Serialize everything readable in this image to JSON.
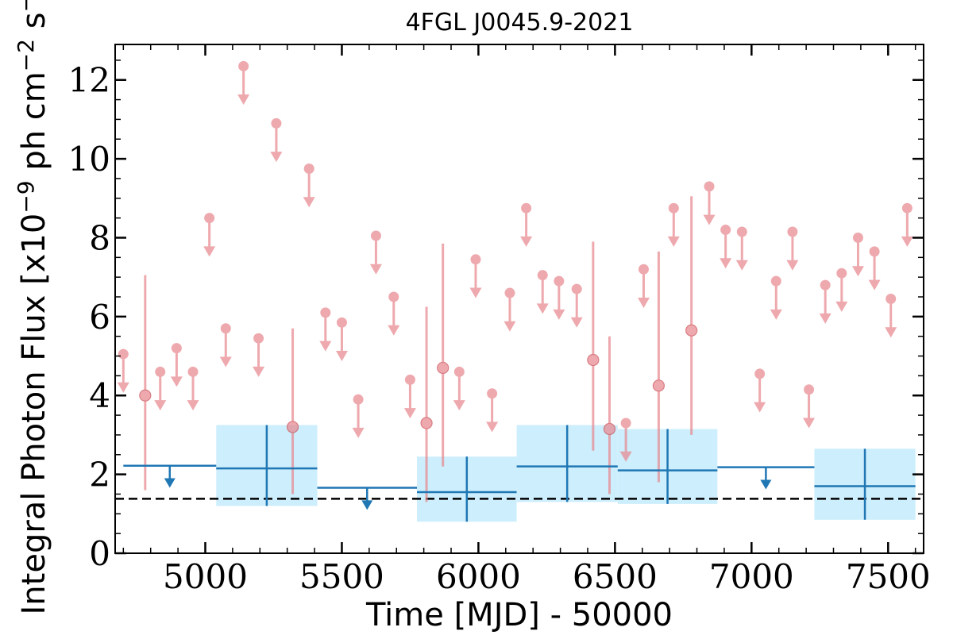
{
  "chart_data": {
    "type": "scatter",
    "title": "4FGL J0045.9-2021",
    "xlabel": "Time [MJD] - 50000",
    "ylabel": "Integral Photon Flux [x10^-9 ph cm^-2 s^-1]",
    "xlim": [
      4670,
      7630
    ],
    "ylim": [
      0,
      12.9
    ],
    "xticks": [
      "5000",
      "5500",
      "6000",
      "6500",
      "7000",
      "7500"
    ],
    "yticks": [
      "0",
      "2",
      "4",
      "6",
      "8",
      "10",
      "12"
    ],
    "reference_level": 1.38,
    "colors": {
      "short_bins": "#e8868c",
      "long_bins": "#1f77b4",
      "long_bins_band": "#cdeefc",
      "reference_line": "#000000"
    },
    "series": [
      {
        "kind": "short_bins",
        "upper_limits": [
          {
            "x": 4700,
            "y": 5.05
          },
          {
            "x": 4835,
            "y": 4.6
          },
          {
            "x": 4895,
            "y": 5.2
          },
          {
            "x": 4955,
            "y": 4.6
          },
          {
            "x": 5015,
            "y": 8.5
          },
          {
            "x": 5075,
            "y": 5.7
          },
          {
            "x": 5140,
            "y": 12.35
          },
          {
            "x": 5195,
            "y": 5.45
          },
          {
            "x": 5260,
            "y": 10.9
          },
          {
            "x": 5380,
            "y": 9.75
          },
          {
            "x": 5440,
            "y": 6.1
          },
          {
            "x": 5500,
            "y": 5.85
          },
          {
            "x": 5560,
            "y": 3.9
          },
          {
            "x": 5625,
            "y": 8.05
          },
          {
            "x": 5690,
            "y": 6.5
          },
          {
            "x": 5750,
            "y": 4.4
          },
          {
            "x": 5930,
            "y": 4.6
          },
          {
            "x": 5990,
            "y": 7.45
          },
          {
            "x": 6050,
            "y": 4.05
          },
          {
            "x": 6115,
            "y": 6.6
          },
          {
            "x": 6175,
            "y": 8.75
          },
          {
            "x": 6235,
            "y": 7.05
          },
          {
            "x": 6295,
            "y": 6.9
          },
          {
            "x": 6360,
            "y": 6.7
          },
          {
            "x": 6540,
            "y": 3.3
          },
          {
            "x": 6605,
            "y": 7.2
          },
          {
            "x": 6715,
            "y": 8.75
          },
          {
            "x": 6845,
            "y": 9.3
          },
          {
            "x": 6905,
            "y": 8.2
          },
          {
            "x": 6965,
            "y": 8.15
          },
          {
            "x": 7030,
            "y": 4.55
          },
          {
            "x": 7090,
            "y": 6.9
          },
          {
            "x": 7150,
            "y": 8.15
          },
          {
            "x": 7210,
            "y": 4.15
          },
          {
            "x": 7270,
            "y": 6.8
          },
          {
            "x": 7330,
            "y": 7.1
          },
          {
            "x": 7390,
            "y": 8.0
          },
          {
            "x": 7450,
            "y": 7.65
          },
          {
            "x": 7510,
            "y": 6.45
          },
          {
            "x": 7570,
            "y": 8.75
          }
        ],
        "detections": [
          {
            "x": 4780,
            "y": 4.0,
            "err_low": 1.6,
            "err_high": 7.05
          },
          {
            "x": 5320,
            "y": 3.2,
            "err_low": 1.5,
            "err_high": 5.7
          },
          {
            "x": 5810,
            "y": 3.3,
            "err_low": 1.3,
            "err_high": 6.25
          },
          {
            "x": 5870,
            "y": 4.7,
            "err_low": 2.2,
            "err_high": 7.85
          },
          {
            "x": 6420,
            "y": 4.9,
            "err_low": 2.6,
            "err_high": 7.9
          },
          {
            "x": 6480,
            "y": 3.15,
            "err_low": 1.5,
            "err_high": 5.5
          },
          {
            "x": 6660,
            "y": 4.25,
            "err_low": 1.8,
            "err_high": 7.65
          },
          {
            "x": 6780,
            "y": 5.65,
            "err_low": 3.0,
            "err_high": 9.05
          }
        ]
      },
      {
        "kind": "long_bins",
        "upper_limits": [
          {
            "x0": 4700,
            "x1": 5040,
            "y": 2.22
          },
          {
            "x0": 5410,
            "x1": 5775,
            "y": 1.66
          },
          {
            "x0": 6875,
            "x1": 7230,
            "y": 2.18
          }
        ],
        "detections": [
          {
            "x0": 5040,
            "x1": 5410,
            "y": 2.15,
            "err_low": 1.2,
            "err_high": 3.25
          },
          {
            "x0": 5775,
            "x1": 6140,
            "y": 1.55,
            "err_low": 0.8,
            "err_high": 2.45
          },
          {
            "x0": 6140,
            "x1": 6510,
            "y": 2.2,
            "err_low": 1.3,
            "err_high": 3.25
          },
          {
            "x0": 6510,
            "x1": 6875,
            "y": 2.1,
            "err_low": 1.25,
            "err_high": 3.15
          },
          {
            "x0": 7230,
            "x1": 7600,
            "y": 1.7,
            "err_low": 0.85,
            "err_high": 2.65
          }
        ]
      }
    ]
  }
}
